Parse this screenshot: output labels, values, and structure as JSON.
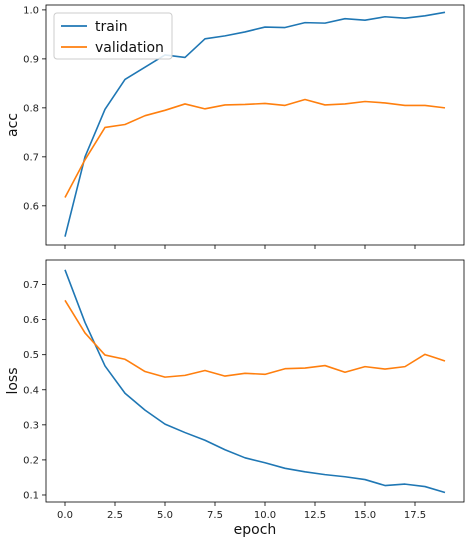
{
  "chart_data": [
    {
      "type": "line",
      "ylabel": "acc",
      "xlabel": "",
      "xlim": [
        -0.95,
        19.95
      ],
      "ylim": [
        0.52,
        1.01
      ],
      "x_ticks": [
        0.0,
        2.5,
        5.0,
        7.5,
        10.0,
        12.5,
        15.0,
        17.5
      ],
      "x_tick_labels_visible": false,
      "y_ticks": [
        0.6,
        0.7,
        0.8,
        0.9,
        1.0
      ],
      "y_tick_labels": [
        "0.6",
        "0.7",
        "0.8",
        "0.9",
        "1.0"
      ],
      "legend": "upper-left",
      "grid": false,
      "x": [
        0,
        1,
        2,
        3,
        4,
        5,
        6,
        7,
        8,
        9,
        10,
        11,
        12,
        13,
        14,
        15,
        16,
        17,
        18,
        19
      ],
      "series": [
        {
          "name": "train",
          "color": "#1f77b4",
          "values": [
            0.537,
            0.7,
            0.797,
            0.858,
            0.883,
            0.908,
            0.903,
            0.941,
            0.947,
            0.955,
            0.965,
            0.964,
            0.974,
            0.973,
            0.982,
            0.979,
            0.986,
            0.983,
            0.988,
            0.995
          ]
        },
        {
          "name": "validation",
          "color": "#ff7f0e",
          "values": [
            0.617,
            0.694,
            0.76,
            0.766,
            0.784,
            0.795,
            0.808,
            0.798,
            0.806,
            0.807,
            0.809,
            0.805,
            0.817,
            0.806,
            0.808,
            0.813,
            0.81,
            0.805,
            0.805,
            0.8
          ]
        }
      ]
    },
    {
      "type": "line",
      "ylabel": "loss",
      "xlabel": "epoch",
      "xlim": [
        -0.95,
        19.95
      ],
      "ylim": [
        0.08,
        0.77
      ],
      "x_ticks": [
        0.0,
        2.5,
        5.0,
        7.5,
        10.0,
        12.5,
        15.0,
        17.5
      ],
      "x_tick_labels": [
        "0.0",
        "2.5",
        "5.0",
        "7.5",
        "10.0",
        "12.5",
        "15.0",
        "17.5"
      ],
      "y_ticks": [
        0.1,
        0.2,
        0.3,
        0.4,
        0.5,
        0.6,
        0.7
      ],
      "y_tick_labels": [
        "0.1",
        "0.2",
        "0.3",
        "0.4",
        "0.5",
        "0.6",
        "0.7"
      ],
      "grid": false,
      "x": [
        0,
        1,
        2,
        3,
        4,
        5,
        6,
        7,
        8,
        9,
        10,
        11,
        12,
        13,
        14,
        15,
        16,
        17,
        18,
        19
      ],
      "series": [
        {
          "name": "train",
          "color": "#1f77b4",
          "values": [
            0.742,
            0.592,
            0.468,
            0.39,
            0.342,
            0.302,
            0.278,
            0.256,
            0.229,
            0.206,
            0.192,
            0.176,
            0.166,
            0.158,
            0.152,
            0.144,
            0.127,
            0.131,
            0.124,
            0.107
          ]
        },
        {
          "name": "validation",
          "color": "#ff7f0e",
          "values": [
            0.655,
            0.562,
            0.499,
            0.487,
            0.452,
            0.436,
            0.441,
            0.455,
            0.439,
            0.447,
            0.444,
            0.46,
            0.462,
            0.469,
            0.45,
            0.466,
            0.459,
            0.466,
            0.501,
            0.482
          ]
        }
      ]
    }
  ]
}
